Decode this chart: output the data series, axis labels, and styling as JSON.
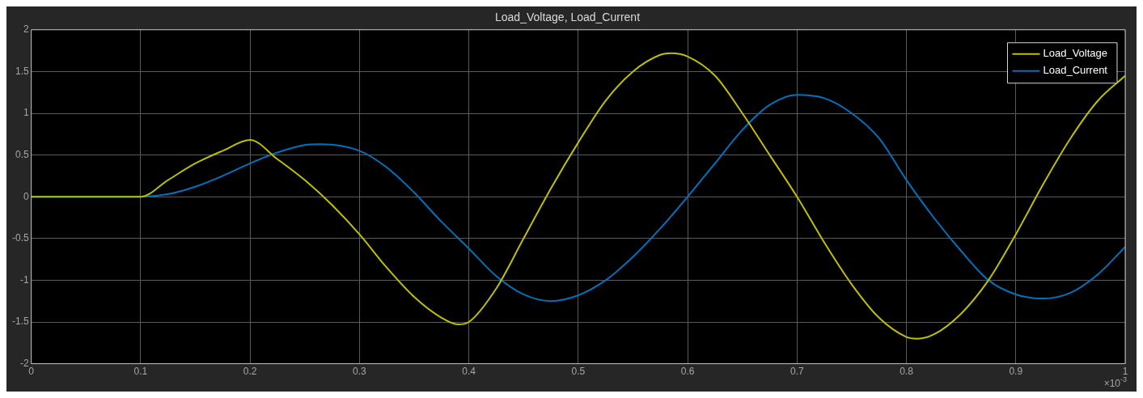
{
  "chart_data": {
    "type": "line",
    "title": "Load_Voltage, Load_Current",
    "annotations": [
      "×10$^{-3}$"
    ],
    "xlim": [
      0,
      1
    ],
    "xticks": [
      0,
      0.1,
      0.2,
      0.3,
      0.4,
      0.5,
      0.6,
      0.7,
      0.8,
      0.9,
      1
    ],
    "ylim": [
      -2,
      2
    ],
    "yticks": [
      -2,
      -1.5,
      -1,
      -0.5,
      0,
      0.5,
      1,
      1.5,
      2
    ],
    "grid": true,
    "legend": "top right",
    "marker": "none",
    "line_style": "solid",
    "series": [
      {
        "name": "Load_Voltage",
        "color": "#bfbf00",
        "x": [
          0,
          0.1,
          0.125,
          0.15,
          0.175,
          0.2,
          0.225,
          0.25,
          0.275,
          0.3,
          0.325,
          0.35,
          0.375,
          0.39,
          0.4,
          0.425,
          0.45,
          0.475,
          0.5,
          0.525,
          0.55,
          0.575,
          0.585,
          0.6,
          0.625,
          0.65,
          0.675,
          0.7,
          0.725,
          0.75,
          0.775,
          0.8,
          0.81,
          0.825,
          0.85,
          0.875,
          0.9,
          0.925,
          0.95,
          0.975,
          1
        ],
        "values": [
          0,
          0,
          0.2,
          0.4,
          0.55,
          0.68,
          0.45,
          0.2,
          -0.1,
          -0.45,
          -0.85,
          -1.2,
          -1.45,
          -1.53,
          -1.5,
          -1.1,
          -0.5,
          0.1,
          0.65,
          1.15,
          1.5,
          1.7,
          1.72,
          1.68,
          1.45,
          1,
          0.5,
          0,
          -0.55,
          -1.05,
          -1.45,
          -1.68,
          -1.7,
          -1.65,
          -1.4,
          -1,
          -0.45,
          0.15,
          0.7,
          1.15,
          1.45
        ]
      },
      {
        "name": "Load_Current",
        "color": "#0072bd",
        "x": [
          0,
          0.1,
          0.125,
          0.15,
          0.175,
          0.2,
          0.225,
          0.25,
          0.265,
          0.3,
          0.325,
          0.35,
          0.375,
          0.4,
          0.425,
          0.45,
          0.475,
          0.5,
          0.525,
          0.55,
          0.575,
          0.6,
          0.625,
          0.65,
          0.675,
          0.7,
          0.725,
          0.75,
          0.775,
          0.8,
          0.825,
          0.85,
          0.875,
          0.9,
          0.925,
          0.95,
          0.975,
          1
        ],
        "values": [
          0,
          0,
          0.03,
          0.12,
          0.25,
          0.4,
          0.53,
          0.62,
          0.63,
          0.55,
          0.35,
          0.05,
          -0.3,
          -0.62,
          -0.95,
          -1.17,
          -1.25,
          -1.18,
          -1,
          -0.72,
          -0.38,
          0,
          0.4,
          0.8,
          1.1,
          1.22,
          1.18,
          1,
          0.7,
          0.2,
          -0.25,
          -0.65,
          -1,
          -1.17,
          -1.22,
          -1.15,
          -0.93,
          -0.6
        ]
      }
    ]
  }
}
